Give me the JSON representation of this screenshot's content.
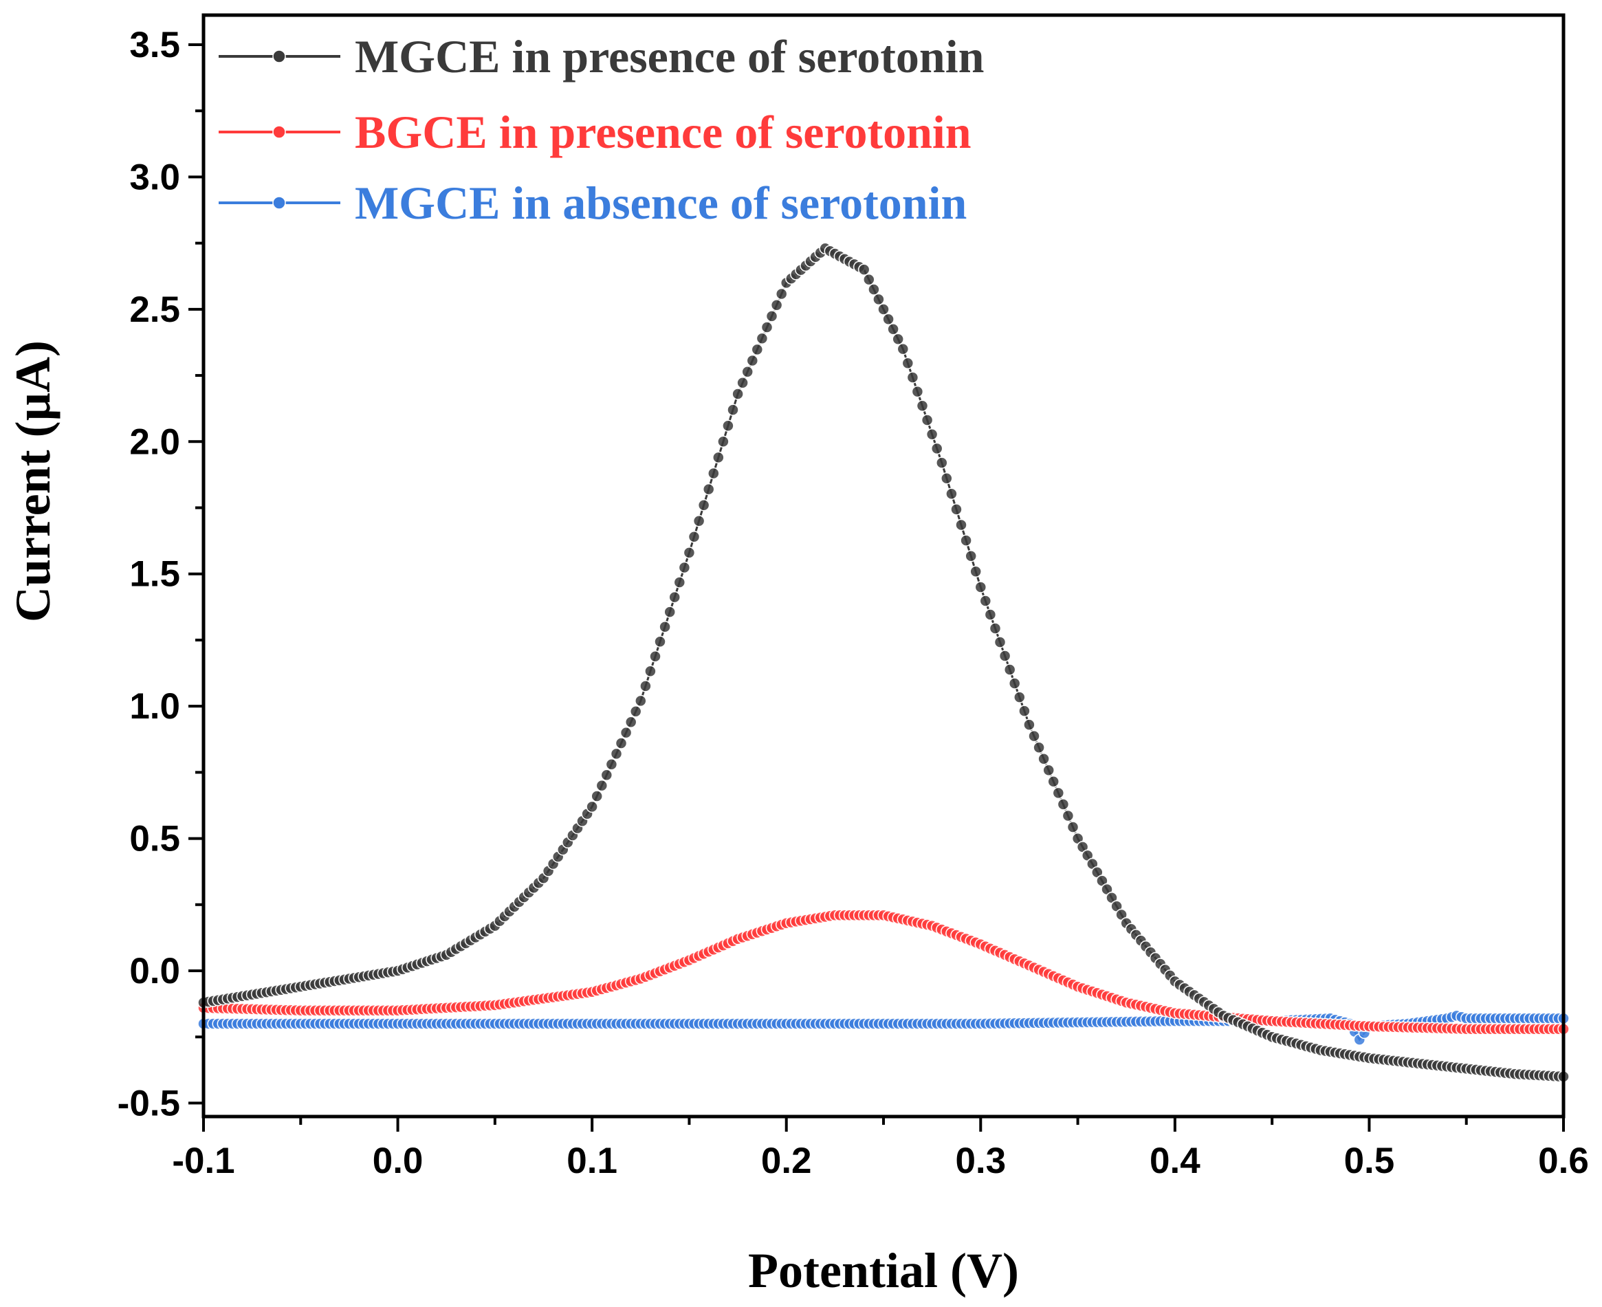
{
  "chart_data": {
    "type": "line",
    "title": "",
    "xlabel": "Potential (V)",
    "ylabel": "Current (µA)",
    "xlim": [
      -0.1,
      0.6
    ],
    "ylim": [
      -0.55,
      3.6
    ],
    "x_ticks": [
      "-0.1",
      "0.0",
      "0.1",
      "0.2",
      "0.3",
      "0.4",
      "0.5",
      "0.6"
    ],
    "y_ticks": [
      "-0.5",
      "0.0",
      "0.5",
      "1.0",
      "1.5",
      "2.0",
      "2.5",
      "3.0",
      "3.5"
    ],
    "legend_position": "top-left",
    "series": [
      {
        "name": "MGCE in presence of serotonin",
        "color": "#3a3a3a",
        "x": [
          -0.1,
          -0.075,
          -0.05,
          -0.025,
          0.0,
          0.025,
          0.05,
          0.075,
          0.1,
          0.125,
          0.15,
          0.175,
          0.2,
          0.22,
          0.24,
          0.26,
          0.28,
          0.3,
          0.325,
          0.35,
          0.375,
          0.4,
          0.425,
          0.45,
          0.475,
          0.5,
          0.525,
          0.55,
          0.575,
          0.6
        ],
        "y": [
          -0.12,
          -0.09,
          -0.06,
          -0.03,
          0.0,
          0.06,
          0.17,
          0.35,
          0.62,
          1.02,
          1.58,
          2.18,
          2.6,
          2.73,
          2.65,
          2.35,
          1.92,
          1.45,
          0.93,
          0.5,
          0.18,
          -0.04,
          -0.17,
          -0.25,
          -0.3,
          -0.33,
          -0.35,
          -0.37,
          -0.39,
          -0.4
        ]
      },
      {
        "name": "BGCE in presence of serotonin",
        "color": "#ff3b3b",
        "x": [
          -0.1,
          -0.05,
          0.0,
          0.05,
          0.1,
          0.125,
          0.15,
          0.175,
          0.2,
          0.225,
          0.25,
          0.275,
          0.3,
          0.325,
          0.35,
          0.375,
          0.4,
          0.45,
          0.5,
          0.55,
          0.6
        ],
        "y": [
          -0.14,
          -0.15,
          -0.15,
          -0.13,
          -0.08,
          -0.03,
          0.04,
          0.12,
          0.18,
          0.21,
          0.21,
          0.17,
          0.1,
          0.02,
          -0.06,
          -0.12,
          -0.16,
          -0.19,
          -0.21,
          -0.22,
          -0.22
        ]
      },
      {
        "name": "MGCE in absence of serotonin",
        "color": "#3b7ddd",
        "x": [
          -0.1,
          0.0,
          0.1,
          0.2,
          0.3,
          0.4,
          0.45,
          0.48,
          0.49,
          0.495,
          0.5,
          0.52,
          0.54,
          0.545,
          0.55,
          0.575,
          0.6
        ],
        "y": [
          -0.2,
          -0.2,
          -0.2,
          -0.2,
          -0.2,
          -0.19,
          -0.19,
          -0.18,
          -0.2,
          -0.26,
          -0.21,
          -0.2,
          -0.18,
          -0.17,
          -0.18,
          -0.18,
          -0.18
        ]
      }
    ]
  }
}
